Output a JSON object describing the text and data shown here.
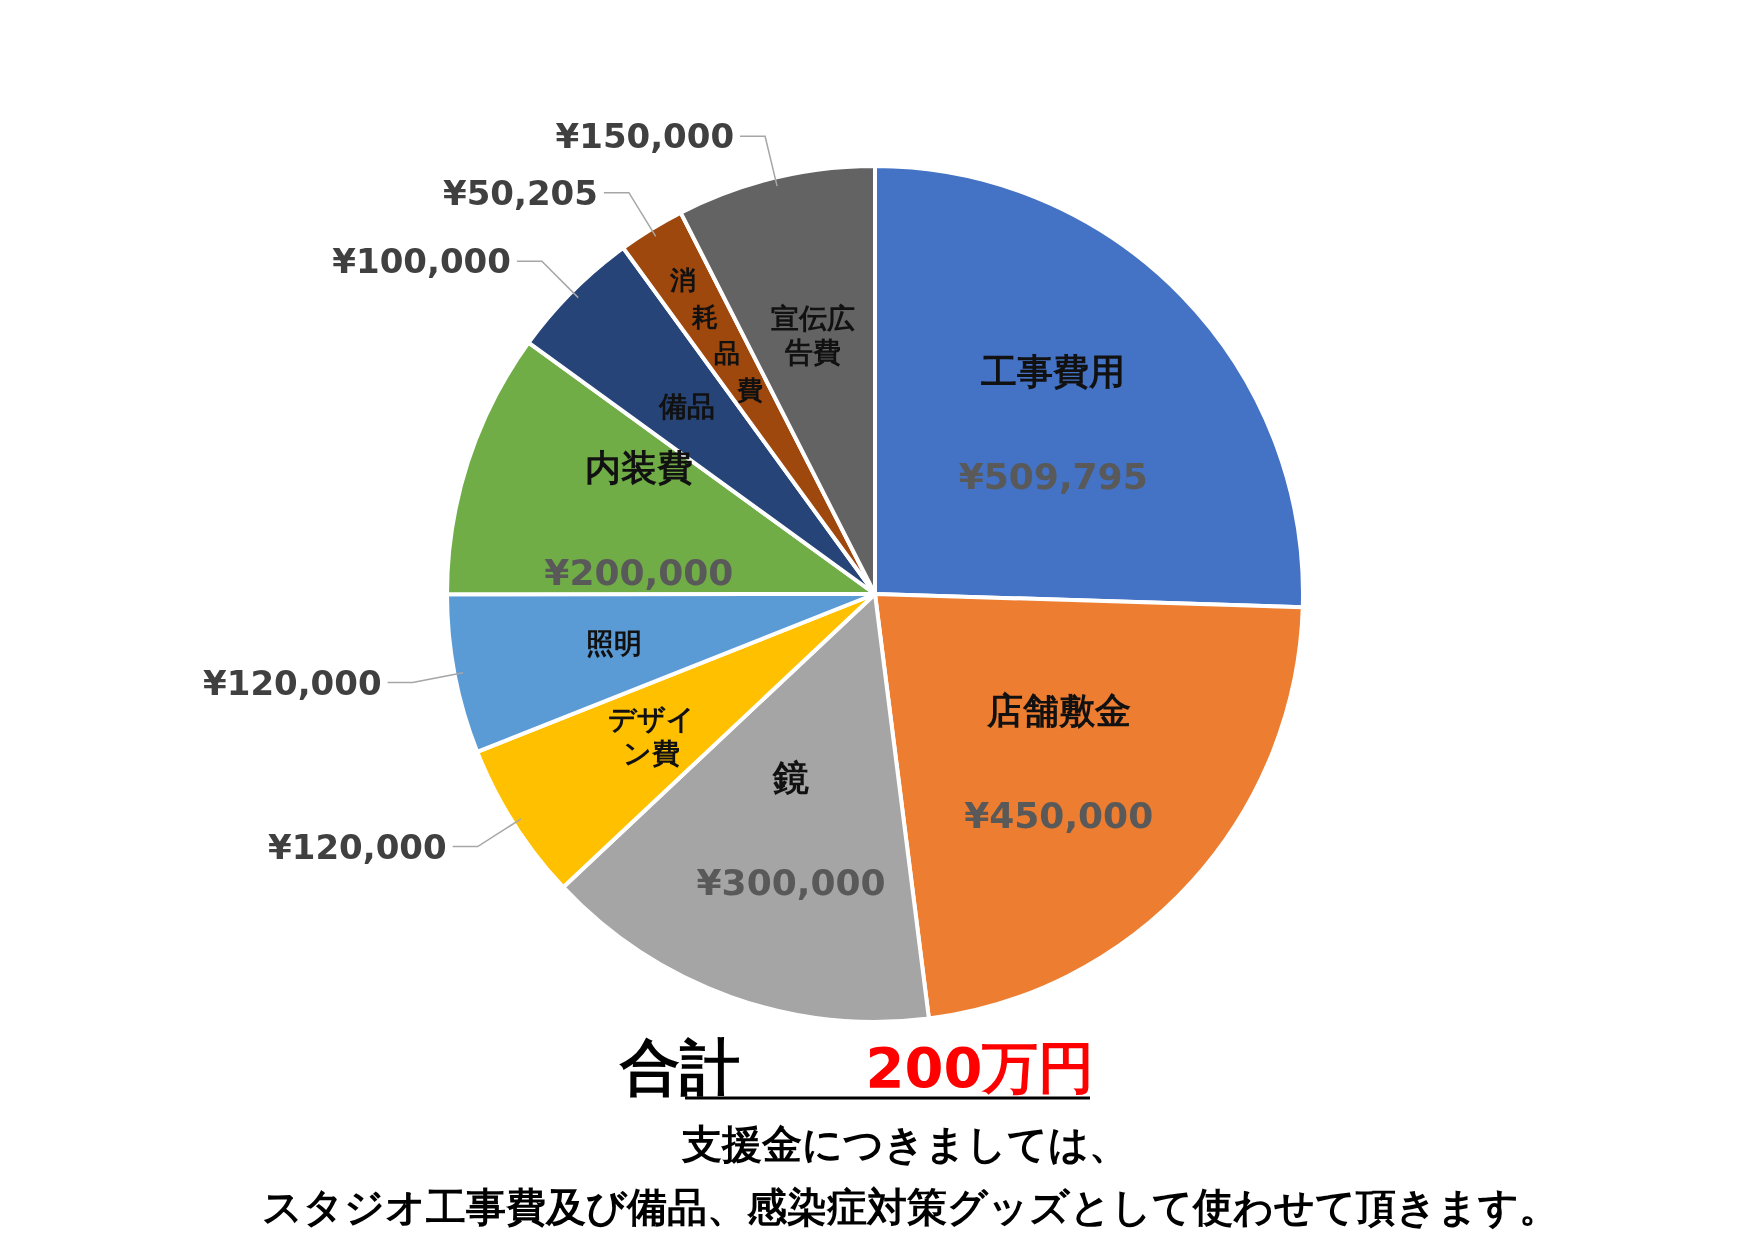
{
  "chart_data": {
    "type": "pie",
    "categories": [
      "工事費用",
      "店舗敷金",
      "鏡",
      "デザイン費",
      "照明",
      "内装費",
      "備品",
      "消耗品費",
      "宣伝広告費"
    ],
    "values": [
      509795,
      450000,
      300000,
      120000,
      120000,
      200000,
      100000,
      50205,
      150000
    ],
    "colors": [
      "#4472c4",
      "#ed7d31",
      "#a5a5a5",
      "#ffc000",
      "#5b9bd5",
      "#70ad47",
      "#264478",
      "#9e480e",
      "#636363"
    ],
    "value_labels": [
      "¥509,795",
      "¥450,000",
      "¥300,000",
      "¥120,000",
      "¥120,000",
      "¥200,000",
      "¥100,000",
      "¥50,205",
      "¥150,000"
    ],
    "annotations": [
      "合計",
      "200万円",
      "支援金につきましては、",
      "スタジオ工事費及び備品、感染症対策グッズとして使わせて頂きます。"
    ]
  }
}
